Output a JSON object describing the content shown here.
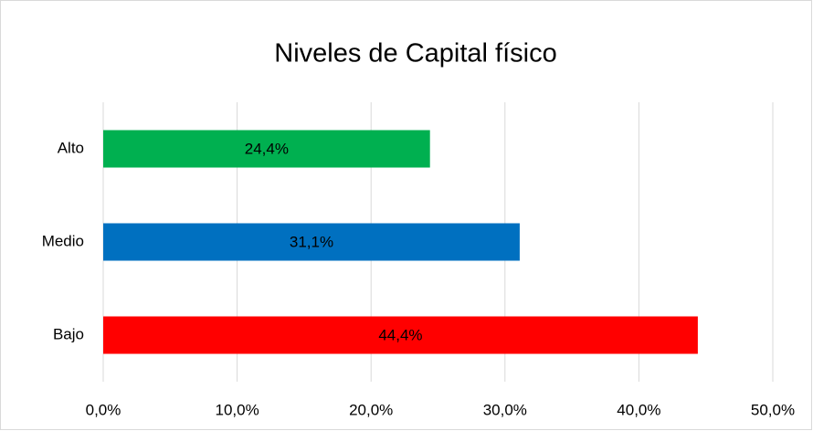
{
  "chart_data": {
    "type": "bar",
    "orientation": "horizontal",
    "title": "Niveles de Capital físico",
    "categories": [
      "Alto",
      "Medio",
      "Bajo"
    ],
    "values": [
      24.4,
      31.1,
      44.4
    ],
    "value_labels": [
      "24,4%",
      "31,1%",
      "44,4%"
    ],
    "colors": [
      "#00b050",
      "#0070c0",
      "#ff0000"
    ],
    "xlim": [
      0,
      50
    ],
    "xticks": [
      {
        "value": 0,
        "label": "0,0%"
      },
      {
        "value": 10,
        "label": "10,0%"
      },
      {
        "value": 20,
        "label": "20,0%"
      },
      {
        "value": 30,
        "label": "30,0%"
      },
      {
        "value": 40,
        "label": "40,0%"
      },
      {
        "value": 50,
        "label": "50,0%"
      }
    ],
    "grid": true
  }
}
